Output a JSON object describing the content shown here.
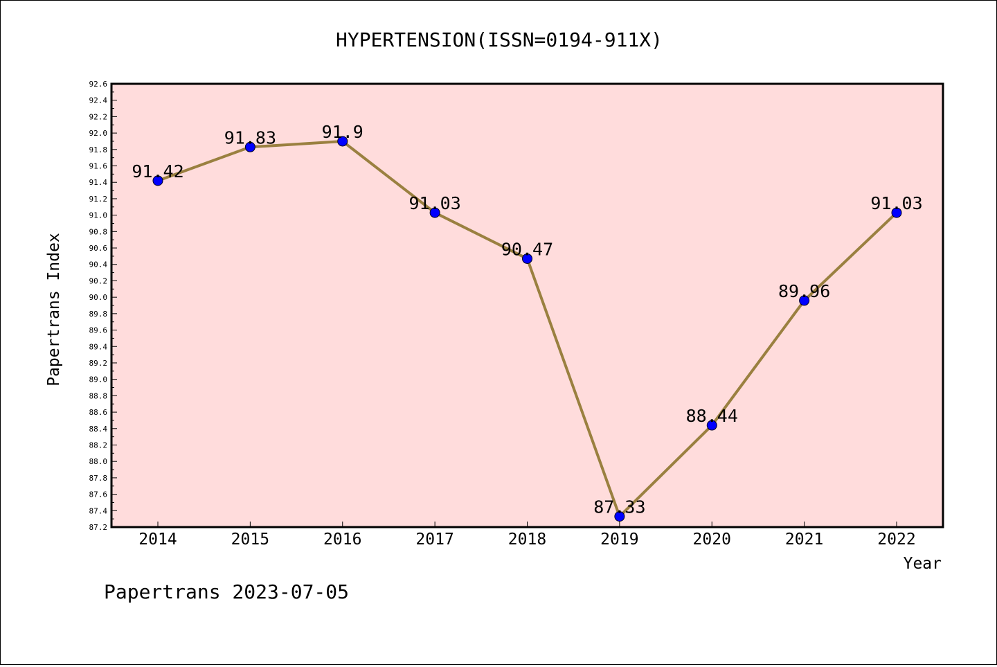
{
  "chart_data": {
    "type": "line",
    "title": "HYPERTENSION(ISSN=0194-911X)",
    "xlabel": "Year",
    "ylabel": "Papertrans Index",
    "x": [
      "2014",
      "2015",
      "2016",
      "2017",
      "2018",
      "2019",
      "2020",
      "2021",
      "2022"
    ],
    "series": [
      {
        "values": [
          91.42,
          91.83,
          91.9,
          91.03,
          90.47,
          87.33,
          88.44,
          89.96,
          91.03
        ],
        "labels": [
          "91.42",
          "91.83",
          "91.9",
          "91.03",
          "90.47",
          "87.33",
          "88.44",
          "89.96",
          "91.03"
        ]
      }
    ],
    "ylim": [
      87.2,
      92.6
    ],
    "ytick_step": 0.2,
    "yticks": [
      "87.2",
      "87.4",
      "87.6",
      "87.8",
      "88.0",
      "88.2",
      "88.4",
      "88.6",
      "88.8",
      "89.0",
      "89.2",
      "89.4",
      "89.6",
      "89.8",
      "90.0",
      "90.2",
      "90.4",
      "90.6",
      "90.8",
      "91.0",
      "91.2",
      "91.4",
      "91.6",
      "91.8",
      "92.0",
      "92.2",
      "92.4",
      "92.6"
    ],
    "grid": false,
    "colors": {
      "plot_background": "#ffdcdc",
      "line": "#9a8040",
      "marker": "#0000ff"
    }
  },
  "footer": "Papertrans 2023-07-05"
}
